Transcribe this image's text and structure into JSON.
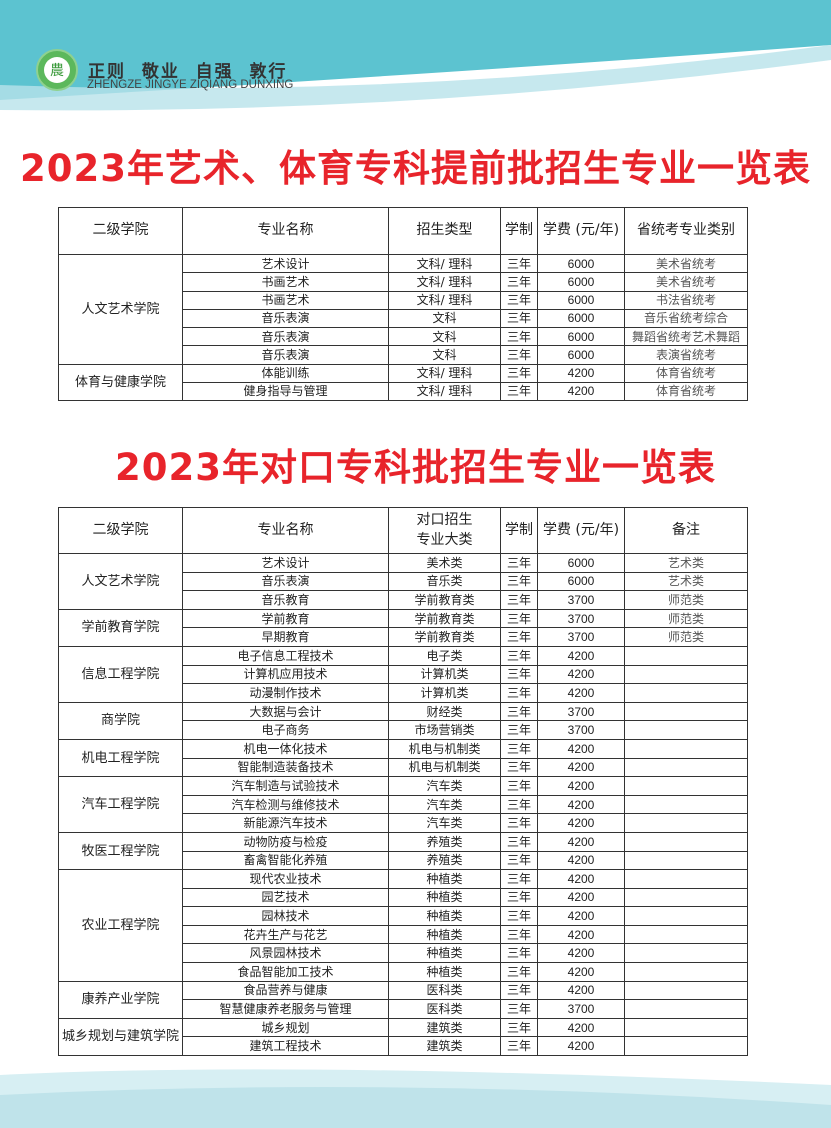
{
  "header": {
    "motto": "正则  敬业  自强  敦行",
    "motto_en": "ZHENGZE JINGYE ZIQIANG DUNXING",
    "logo_text": "農"
  },
  "colors": {
    "title": "#e8242b",
    "top_wave": "#5cc3d0",
    "bottom_wave": "#bfe3ea"
  },
  "table1": {
    "title": "2023年艺术、体育专科提前批招生专业一览表",
    "headers": [
      "二级学院",
      "专业名称",
      "招生类型",
      "学制",
      "学费 (元/年)",
      "省统考专业类别"
    ],
    "groups": [
      {
        "college": "人文艺术学院",
        "rows": [
          [
            "艺术设计",
            "文科/ 理科",
            "三年",
            "6000",
            "美术省统考"
          ],
          [
            "书画艺术",
            "文科/ 理科",
            "三年",
            "6000",
            "美术省统考"
          ],
          [
            "书画艺术",
            "文科/ 理科",
            "三年",
            "6000",
            "书法省统考"
          ],
          [
            "音乐表演",
            "文科",
            "三年",
            "6000",
            "音乐省统考综合"
          ],
          [
            "音乐表演",
            "文科",
            "三年",
            "6000",
            "舞蹈省统考艺术舞蹈"
          ],
          [
            "音乐表演",
            "文科",
            "三年",
            "6000",
            "表演省统考"
          ]
        ]
      },
      {
        "college": "体育与健康学院",
        "rows": [
          [
            "体能训练",
            "文科/ 理科",
            "三年",
            "4200",
            "体育省统考"
          ],
          [
            "健身指导与管理",
            "文科/ 理科",
            "三年",
            "4200",
            "体育省统考"
          ]
        ]
      }
    ]
  },
  "table2": {
    "title": "2023年对口专科批招生专业一览表",
    "headers": [
      "二级学院",
      "专业名称",
      "对口招生\n专业大类",
      "学制",
      "学费 (元/年)",
      "备注"
    ],
    "groups": [
      {
        "college": "人文艺术学院",
        "rows": [
          [
            "艺术设计",
            "美术类",
            "三年",
            "6000",
            "艺术类"
          ],
          [
            "音乐表演",
            "音乐类",
            "三年",
            "6000",
            "艺术类"
          ],
          [
            "音乐教育",
            "学前教育类",
            "三年",
            "3700",
            "师范类"
          ]
        ]
      },
      {
        "college": "学前教育学院",
        "rows": [
          [
            "学前教育",
            "学前教育类",
            "三年",
            "3700",
            "师范类"
          ],
          [
            "早期教育",
            "学前教育类",
            "三年",
            "3700",
            "师范类"
          ]
        ]
      },
      {
        "college": "信息工程学院",
        "rows": [
          [
            "电子信息工程技术",
            "电子类",
            "三年",
            "4200",
            ""
          ],
          [
            "计算机应用技术",
            "计算机类",
            "三年",
            "4200",
            ""
          ],
          [
            "动漫制作技术",
            "计算机类",
            "三年",
            "4200",
            ""
          ]
        ]
      },
      {
        "college": "商学院",
        "rows": [
          [
            "大数据与会计",
            "财经类",
            "三年",
            "3700",
            ""
          ],
          [
            "电子商务",
            "市场营销类",
            "三年",
            "3700",
            ""
          ]
        ]
      },
      {
        "college": "机电工程学院",
        "rows": [
          [
            "机电一体化技术",
            "机电与机制类",
            "三年",
            "4200",
            ""
          ],
          [
            "智能制造装备技术",
            "机电与机制类",
            "三年",
            "4200",
            ""
          ]
        ]
      },
      {
        "college": "汽车工程学院",
        "rows": [
          [
            "汽车制造与试验技术",
            "汽车类",
            "三年",
            "4200",
            ""
          ],
          [
            "汽车检测与维修技术",
            "汽车类",
            "三年",
            "4200",
            ""
          ],
          [
            "新能源汽车技术",
            "汽车类",
            "三年",
            "4200",
            ""
          ]
        ]
      },
      {
        "college": "牧医工程学院",
        "rows": [
          [
            "动物防疫与检疫",
            "养殖类",
            "三年",
            "4200",
            ""
          ],
          [
            "畜禽智能化养殖",
            "养殖类",
            "三年",
            "4200",
            ""
          ]
        ]
      },
      {
        "college": "农业工程学院",
        "rows": [
          [
            "现代农业技术",
            "种植类",
            "三年",
            "4200",
            ""
          ],
          [
            "园艺技术",
            "种植类",
            "三年",
            "4200",
            ""
          ],
          [
            "园林技术",
            "种植类",
            "三年",
            "4200",
            ""
          ],
          [
            "花卉生产与花艺",
            "种植类",
            "三年",
            "4200",
            ""
          ],
          [
            "风景园林技术",
            "种植类",
            "三年",
            "4200",
            ""
          ],
          [
            "食品智能加工技术",
            "种植类",
            "三年",
            "4200",
            ""
          ]
        ]
      },
      {
        "college": "康养产业学院",
        "rows": [
          [
            "食品营养与健康",
            "医科类",
            "三年",
            "4200",
            ""
          ],
          [
            "智慧健康养老服务与管理",
            "医科类",
            "三年",
            "3700",
            ""
          ]
        ]
      },
      {
        "college": "城乡规划与建筑学院",
        "rows": [
          [
            "城乡规划",
            "建筑类",
            "三年",
            "4200",
            ""
          ],
          [
            "建筑工程技术",
            "建筑类",
            "三年",
            "4200",
            ""
          ]
        ]
      }
    ]
  }
}
